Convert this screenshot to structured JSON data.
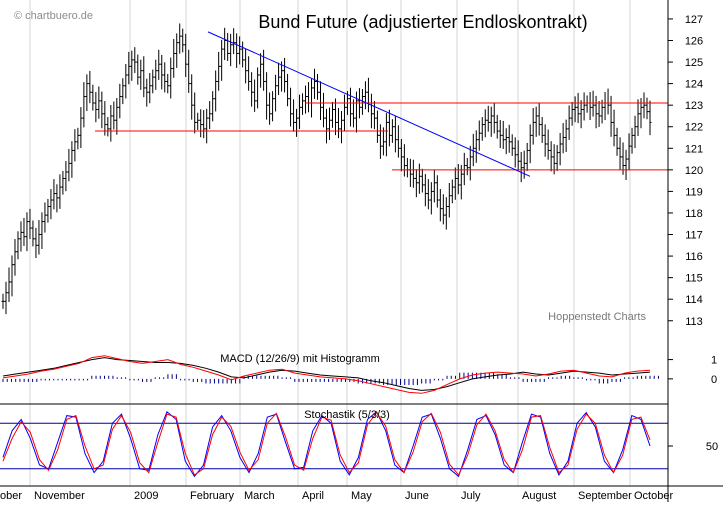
{
  "watermark": "© chartbuero.de",
  "credit": "Hoppenstedt Charts",
  "chart_data": [
    {
      "type": "line",
      "subtype": "ohlc-bars",
      "title": "Bund Future (adjustierter Endloskontrakt)",
      "y_ticks": [
        113,
        114,
        115,
        116,
        117,
        118,
        119,
        120,
        121,
        122,
        123,
        124,
        125,
        126,
        127
      ],
      "ylim": [
        112.2,
        127.6
      ],
      "x_labels": [
        "ober",
        "November",
        "2009",
        "February",
        "March",
        "April",
        "May",
        "June",
        "July",
        "August",
        "September",
        "October"
      ],
      "grid": "vertical month separators",
      "series": [
        {
          "values": [
            113.9,
            114.3,
            114.8,
            115.6,
            116.2,
            116.8,
            117.1,
            116.9,
            117.6,
            117.3,
            116.8,
            116.5,
            117.0,
            117.6,
            117.9,
            118.3,
            118.6,
            118.9,
            118.7,
            119.2,
            119.6,
            119.9,
            120.3,
            120.9,
            121.3,
            121.6,
            122.4,
            123.4,
            124.0,
            123.6,
            123.1,
            122.8,
            123.2,
            122.6,
            122.1,
            121.9,
            122.5,
            122.3,
            122.9,
            123.4,
            123.9,
            124.4,
            124.8,
            125.1,
            125.0,
            124.3,
            124.6,
            123.8,
            123.6,
            123.9,
            124.3,
            124.6,
            124.9,
            124.4,
            124.1,
            123.9,
            124.7,
            125.4,
            125.9,
            126.2,
            125.8,
            124.9,
            124.0,
            123.0,
            122.2,
            122.3,
            122.1,
            121.9,
            122.4,
            122.6,
            123.3,
            124.1,
            124.8,
            125.6,
            126.0,
            125.4,
            125.8,
            125.9,
            125.4,
            125.6,
            125.1,
            124.6,
            124.1,
            123.6,
            123.2,
            124.4,
            124.9,
            124.1,
            123.0,
            122.6,
            123.3,
            123.9,
            124.3,
            124.6,
            124.1,
            123.3,
            122.6,
            122.2,
            122.4,
            122.9,
            123.2,
            123.4,
            123.1,
            123.8,
            124.1,
            123.6,
            122.9,
            122.4,
            121.9,
            122.3,
            122.8,
            122.2,
            121.9,
            122.3,
            122.9,
            123.3,
            122.6,
            122.4,
            123.2,
            122.9,
            123.4,
            123.6,
            123.1,
            122.6,
            122.4,
            121.6,
            121.1,
            121.3,
            122.2,
            121.6,
            122.0,
            121.4,
            121.0,
            120.6,
            120.2,
            120.0,
            119.8,
            119.6,
            119.4,
            119.7,
            119.3,
            118.9,
            118.6,
            119.0,
            119.4,
            118.6,
            118.2,
            117.9,
            118.3,
            118.8,
            119.2,
            119.6,
            119.3,
            119.8,
            120.2,
            120.1,
            120.6,
            121.0,
            121.4,
            121.7,
            122.1,
            122.3,
            122.2,
            122.5,
            122.2,
            121.8,
            121.6,
            121.4,
            121.5,
            121.3,
            121.0,
            120.7,
            120.4,
            120.1,
            120.3,
            120.9,
            121.6,
            122.2,
            122.5,
            122.1,
            121.6,
            121.2,
            120.9,
            120.6,
            120.3,
            120.8,
            121.2,
            121.5,
            121.9,
            122.4,
            122.8,
            122.9,
            122.6,
            122.8,
            123.0,
            123.1,
            122.9,
            123.0,
            122.6,
            122.5,
            122.9,
            123.1,
            123.0,
            122.2,
            121.6,
            121.0,
            120.6,
            120.2,
            120.5,
            121.1,
            121.6,
            122.0,
            122.6,
            122.9,
            123.0,
            122.7,
            122.2
          ]
        }
      ],
      "lines": [
        {
          "kind": "resistance",
          "value": 123.1,
          "color": "#ff0000"
        },
        {
          "kind": "support",
          "value": 121.8,
          "color": "#ff0000"
        },
        {
          "kind": "support",
          "value": 120.0,
          "color": "#ff0000"
        },
        {
          "kind": "trendline",
          "from": 126.4,
          "to": 119.7,
          "color": "#0000ff"
        }
      ]
    },
    {
      "type": "line",
      "title": "MACD (12/26/9) mit Histogramm",
      "y_ticks": [
        1,
        0
      ],
      "ylim": [
        -1.2,
        1.6
      ],
      "series": [
        {
          "color": "#000000",
          "values": [
            0.15,
            0.25,
            0.35,
            0.45,
            0.55,
            0.7,
            0.85,
            1.0,
            1.1,
            1.0,
            0.95,
            0.9,
            0.85,
            0.85,
            0.8,
            0.7,
            0.55,
            0.35,
            0.1,
            0.05,
            0.2,
            0.35,
            0.45,
            0.4,
            0.3,
            0.2,
            0.15,
            0.1,
            0.05,
            -0.1,
            -0.2,
            -0.35,
            -0.5,
            -0.6,
            -0.55,
            -0.4,
            -0.2,
            0.0,
            0.1,
            0.2,
            0.25,
            0.35,
            0.25,
            0.2,
            0.3,
            0.4,
            0.35,
            0.3,
            0.2,
            0.25,
            0.3,
            0.35
          ]
        },
        {
          "color": "#ff0000",
          "values": [
            0.05,
            0.15,
            0.25,
            0.4,
            0.5,
            0.65,
            0.8,
            1.1,
            1.2,
            1.05,
            0.9,
            0.8,
            0.9,
            1.0,
            0.75,
            0.6,
            0.4,
            0.2,
            -0.05,
            0.15,
            0.3,
            0.45,
            0.5,
            0.3,
            0.2,
            0.1,
            0.05,
            0.0,
            -0.1,
            -0.25,
            -0.4,
            -0.55,
            -0.7,
            -0.75,
            -0.6,
            -0.3,
            0.0,
            0.2,
            0.3,
            0.35,
            0.3,
            0.25,
            0.15,
            0.25,
            0.4,
            0.45,
            0.3,
            0.15,
            0.1,
            0.3,
            0.4,
            0.45
          ]
        }
      ],
      "histogram_color": "#00008b"
    },
    {
      "type": "line",
      "title": "Stochastik (5/3/3)",
      "y_ticks": [
        50
      ],
      "ylim": [
        0,
        100
      ],
      "levels": [
        80,
        20
      ],
      "series": [
        {
          "color": "#0000ff",
          "values": [
            35,
            70,
            85,
            60,
            25,
            20,
            55,
            90,
            88,
            40,
            15,
            30,
            80,
            92,
            60,
            20,
            18,
            65,
            95,
            85,
            30,
            10,
            25,
            75,
            90,
            70,
            35,
            15,
            40,
            88,
            92,
            55,
            20,
            22,
            70,
            90,
            80,
            30,
            12,
            35,
            85,
            95,
            70,
            25,
            15,
            50,
            88,
            92,
            60,
            20,
            10,
            45,
            85,
            90,
            65,
            25,
            15,
            55,
            92,
            88,
            40,
            12,
            30,
            80,
            94,
            75,
            30,
            15,
            45,
            90,
            85,
            50
          ]
        },
        {
          "color": "#ff0000",
          "values": [
            30,
            60,
            82,
            68,
            32,
            18,
            45,
            85,
            90,
            50,
            20,
            25,
            72,
            90,
            68,
            28,
            15,
            55,
            92,
            88,
            40,
            12,
            20,
            65,
            88,
            76,
            42,
            18,
            32,
            80,
            93,
            62,
            25,
            18,
            60,
            88,
            84,
            38,
            15,
            28,
            78,
            94,
            76,
            32,
            15,
            42,
            82,
            93,
            68,
            26,
            12,
            38,
            78,
            92,
            70,
            32,
            15,
            45,
            88,
            90,
            48,
            15,
            25,
            72,
            92,
            80,
            38,
            15,
            38,
            85,
            88,
            58
          ]
        }
      ]
    }
  ]
}
